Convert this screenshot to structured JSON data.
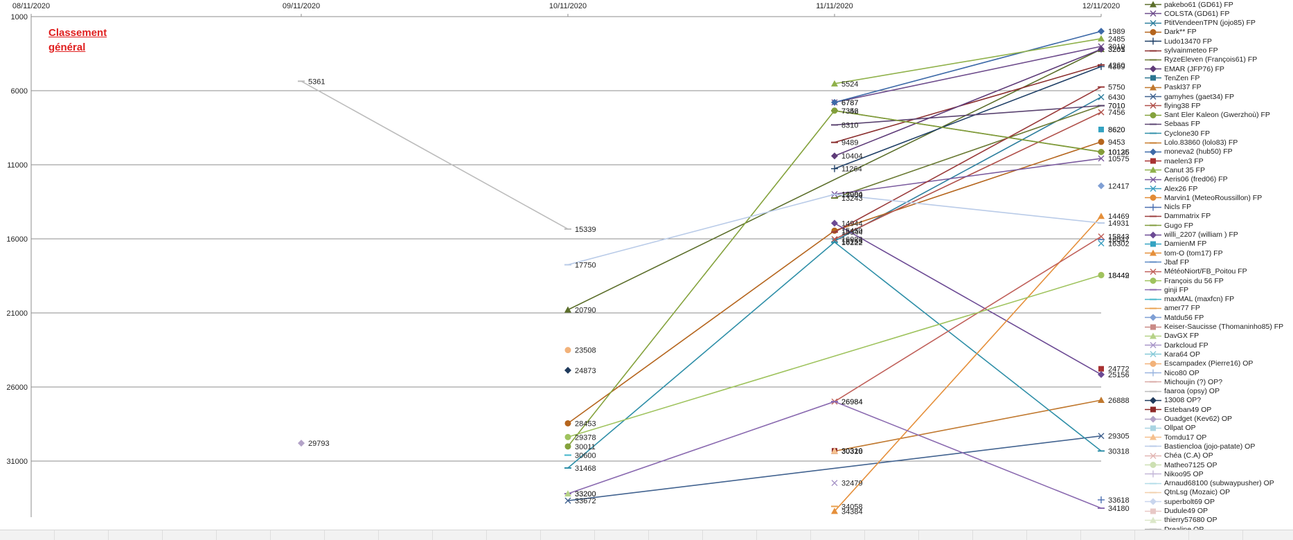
{
  "annotation": {
    "line1": "Classement",
    "line2": "général"
  },
  "chart_data": {
    "type": "line",
    "title": "",
    "y_reversed": true,
    "ylim": [
      1000,
      36000
    ],
    "yticks": [
      1000,
      6000,
      11000,
      16000,
      21000,
      26000,
      31000
    ],
    "x": [
      "08/11/2020",
      "09/11/2020",
      "10/11/2020",
      "11/11/2020",
      "12/11/2020"
    ],
    "grid": "horizontal",
    "legend_placement": "right",
    "series": [
      {
        "name": "pakebo61 (GD61) FP",
        "color": "#5b6e2a",
        "marker": "triangle",
        "values": [
          null,
          null,
          20790,
          null,
          3205
        ]
      },
      {
        "name": "COLSTA (GD61) FP",
        "color": "#6e4c8c",
        "marker": "x",
        "values": [
          null,
          null,
          null,
          6787,
          3010
        ]
      },
      {
        "name": "PtitVendeenTPN (jojo85) FP",
        "color": "#2e7f9e",
        "marker": "x",
        "values": [
          null,
          null,
          null,
          16155,
          6430
        ]
      },
      {
        "name": "Dark** FP",
        "color": "#b5651d",
        "marker": "circle",
        "values": [
          null,
          null,
          28453,
          15450,
          9453
        ]
      },
      {
        "name": "Ludo13470 FP",
        "color": "#1f3f66",
        "marker": "plus",
        "values": [
          null,
          null,
          null,
          11264,
          4369
        ]
      },
      {
        "name": "sylvainmeteo FP",
        "color": "#8b2f2f",
        "marker": "dash",
        "values": [
          null,
          null,
          null,
          9489,
          4260
        ]
      },
      {
        "name": "RyzeEleven (François61) FP",
        "color": "#6a7a34",
        "marker": "dash",
        "values": [
          null,
          null,
          null,
          13243,
          7010
        ]
      },
      {
        "name": "EMAR (JFP76) FP",
        "color": "#5e3b78",
        "marker": "diamond",
        "values": [
          null,
          null,
          null,
          10404,
          3201
        ]
      },
      {
        "name": "TenZen FP",
        "color": "#2a7590",
        "marker": "square",
        "values": [
          null,
          null,
          null,
          null,
          8620
        ]
      },
      {
        "name": "Paskl37 FP",
        "color": "#c0782e",
        "marker": "triangle",
        "values": [
          null,
          null,
          null,
          30328,
          26888
        ]
      },
      {
        "name": "gamyhes (gaet34) FP",
        "color": "#41628f",
        "marker": "x",
        "values": [
          null,
          null,
          33672,
          null,
          29305
        ]
      },
      {
        "name": "flying38 FP",
        "color": "#b0504a",
        "marker": "x",
        "values": [
          null,
          null,
          null,
          16023,
          7456
        ]
      },
      {
        "name": "Sant Eler Kaleon (Gwerzhoù) FP",
        "color": "#84a23c",
        "marker": "circle",
        "values": [
          null,
          null,
          30011,
          7346,
          10135
        ]
      },
      {
        "name": "Sebaas FP",
        "color": "#5a4370",
        "marker": "dash",
        "values": [
          null,
          null,
          null,
          8310,
          7010
        ]
      },
      {
        "name": "Cyclone30 FP",
        "color": "#2f8fa8",
        "marker": "dash",
        "values": [
          null,
          null,
          31468,
          16222,
          30318
        ]
      },
      {
        "name": "Lolo.83860 (lolo83) FP",
        "color": "#c77b2c",
        "marker": "dash",
        "values": [
          null,
          null,
          null,
          null,
          10126
        ]
      },
      {
        "name": "moneva2 (hub50) FP",
        "color": "#3e6aa8",
        "marker": "diamond",
        "values": [
          null,
          null,
          null,
          6787,
          1989
        ]
      },
      {
        "name": "maelen3 FP",
        "color": "#a83232",
        "marker": "square",
        "values": [
          null,
          null,
          null,
          null,
          24772
        ]
      },
      {
        "name": "Canut 35 FP",
        "color": "#8fb14a",
        "marker": "triangle",
        "values": [
          null,
          null,
          null,
          5524,
          2485
        ]
      },
      {
        "name": "Aeris06 (fred06) FP",
        "color": "#7a5a9e",
        "marker": "x",
        "values": [
          null,
          null,
          null,
          12984,
          10575
        ]
      },
      {
        "name": "Alex26 FP",
        "color": "#3a9dbf",
        "marker": "x",
        "values": [
          null,
          null,
          null,
          null,
          16302
        ]
      },
      {
        "name": "Marvin1 (MeteoRoussillon) FP",
        "color": "#e28b35",
        "marker": "circle",
        "values": [
          null,
          null,
          null,
          null,
          18442
        ]
      },
      {
        "name": "Nicls FP",
        "color": "#4b6fb0",
        "marker": "plus",
        "values": [
          null,
          null,
          null,
          null,
          33618
        ]
      },
      {
        "name": "Dammatrix FP",
        "color": "#9a3b3b",
        "marker": "dash",
        "values": [
          null,
          null,
          null,
          15544,
          5750
        ]
      },
      {
        "name": "Gugo FP",
        "color": "#7f9a3a",
        "marker": "dash",
        "values": [
          null,
          null,
          null,
          7352,
          10125
        ]
      },
      {
        "name": "willi_2207 (william ) FP",
        "color": "#6c4a94",
        "marker": "diamond",
        "values": [
          null,
          null,
          null,
          14944,
          25156
        ]
      },
      {
        "name": "DamienM FP",
        "color": "#34a3c2",
        "marker": "square",
        "values": [
          null,
          null,
          null,
          null,
          8620
        ]
      },
      {
        "name": "tom-O (tom17) FP",
        "color": "#e58f3a",
        "marker": "triangle",
        "values": [
          null,
          null,
          null,
          34384,
          14469
        ]
      },
      {
        "name": "Jbaf FP",
        "color": "#5d8ac4",
        "marker": "dash",
        "values": [
          null,
          null,
          null,
          null,
          16047
        ]
      },
      {
        "name": "MétéoNiort/FB_Poitou FP",
        "color": "#c0605a",
        "marker": "x",
        "values": [
          null,
          null,
          null,
          26984,
          15843
        ]
      },
      {
        "name": "François du 56 FP",
        "color": "#9fc35e",
        "marker": "circle",
        "values": [
          null,
          null,
          29378,
          null,
          18449
        ]
      },
      {
        "name": "ginji FP",
        "color": "#8a6ab0",
        "marker": "dash",
        "values": [
          null,
          null,
          33200,
          26984,
          34180
        ]
      },
      {
        "name": "maxMAL (maxfcn) FP",
        "color": "#41b4c9",
        "marker": "dash",
        "values": [
          null,
          null,
          30600,
          null,
          null
        ]
      },
      {
        "name": "amer77 FP",
        "color": "#e8a04e",
        "marker": "dash",
        "values": [
          null,
          null,
          null,
          34058,
          null
        ]
      },
      {
        "name": "Matdu56 FP",
        "color": "#7f9fd4",
        "marker": "diamond",
        "values": [
          null,
          null,
          null,
          null,
          12417
        ]
      },
      {
        "name": "Keiser-Saucisse (Thomaninho85) FP",
        "color": "#c98a86",
        "marker": "square",
        "values": [
          null,
          null,
          null,
          null,
          null
        ]
      },
      {
        "name": "DavGX FP",
        "color": "#b6d287",
        "marker": "triangle",
        "values": [
          null,
          null,
          33200,
          null,
          null
        ]
      },
      {
        "name": "Darkcloud FP",
        "color": "#a896c8",
        "marker": "x",
        "values": [
          null,
          null,
          null,
          32479,
          null
        ]
      },
      {
        "name": "Kara64 OP",
        "color": "#86c9d8",
        "marker": "x",
        "values": [
          null,
          null,
          null,
          null,
          null
        ]
      },
      {
        "name": "Escampadex (Pierre16) OP",
        "color": "#f2b27a",
        "marker": "circle",
        "values": [
          null,
          null,
          23508,
          null,
          null
        ]
      },
      {
        "name": "Nico80 OP",
        "color": "#9bb5e0",
        "marker": "plus",
        "values": [
          null,
          null,
          null,
          null,
          null
        ]
      },
      {
        "name": "Michoujin (?) OP?",
        "color": "#d9a9a6",
        "marker": "dash",
        "values": [
          null,
          null,
          null,
          null,
          null
        ]
      },
      {
        "name": "faaroa (opsy) OP",
        "color": "#bcbcbc",
        "marker": "dash",
        "values": [
          null,
          5361,
          15339,
          null,
          null
        ]
      },
      {
        "name": "13008 OP?",
        "color": "#1f3a5c",
        "marker": "diamond",
        "values": [
          null,
          null,
          24873,
          null,
          null
        ]
      },
      {
        "name": "Esteban49 OP",
        "color": "#8e2a2a",
        "marker": "square",
        "values": [
          null,
          null,
          null,
          30310,
          null
        ]
      },
      {
        "name": "Ouadget (Kev62) OP",
        "color": "#b3a3c8",
        "marker": "diamond",
        "values": [
          null,
          29793,
          null,
          null,
          null
        ]
      },
      {
        "name": "Ollpat OP",
        "color": "#a9d4e2",
        "marker": "square",
        "values": [
          null,
          null,
          null,
          null,
          null
        ]
      },
      {
        "name": "Tomdu17 OP",
        "color": "#f5c08e",
        "marker": "triangle",
        "values": [
          null,
          null,
          null,
          30310,
          null
        ]
      },
      {
        "name": "Bastiencloa (jojo-patate) OP",
        "color": "#b9cbe8",
        "marker": "dash",
        "values": [
          null,
          null,
          17750,
          13000,
          14931
        ]
      },
      {
        "name": "Chéa (C.A) OP",
        "color": "#e2b6b3",
        "marker": "x",
        "values": [
          null,
          null,
          null,
          null,
          null
        ]
      },
      {
        "name": "Matheo7125 OP",
        "color": "#cde0b2",
        "marker": "circle",
        "values": [
          null,
          null,
          null,
          null,
          null
        ]
      },
      {
        "name": "Nikoo95 OP",
        "color": "#c5b8d8",
        "marker": "plus",
        "values": [
          null,
          null,
          null,
          null,
          null
        ]
      },
      {
        "name": "Arnaud68100 (subwaypusher) OP",
        "color": "#b3dde8",
        "marker": "dash",
        "values": [
          null,
          null,
          null,
          null,
          null
        ]
      },
      {
        "name": "QtnLsg (Mozaic) OP",
        "color": "#f2d0ad",
        "marker": "dash",
        "values": [
          null,
          null,
          null,
          null,
          null
        ]
      },
      {
        "name": "superbolt69 OP",
        "color": "#c9d6ee",
        "marker": "diamond",
        "values": [
          null,
          null,
          null,
          null,
          null
        ]
      },
      {
        "name": "Dudule49 OP",
        "color": "#e8c8c6",
        "marker": "square",
        "values": [
          null,
          null,
          null,
          null,
          null
        ]
      },
      {
        "name": "thierry57680 OP",
        "color": "#dbe7c8",
        "marker": "triangle",
        "values": [
          null,
          null,
          null,
          null,
          null
        ]
      },
      {
        "name": "Drealine OP",
        "color": "#b7b7b7",
        "marker": "dash",
        "values": [
          null,
          null,
          null,
          null,
          null
        ]
      }
    ]
  }
}
